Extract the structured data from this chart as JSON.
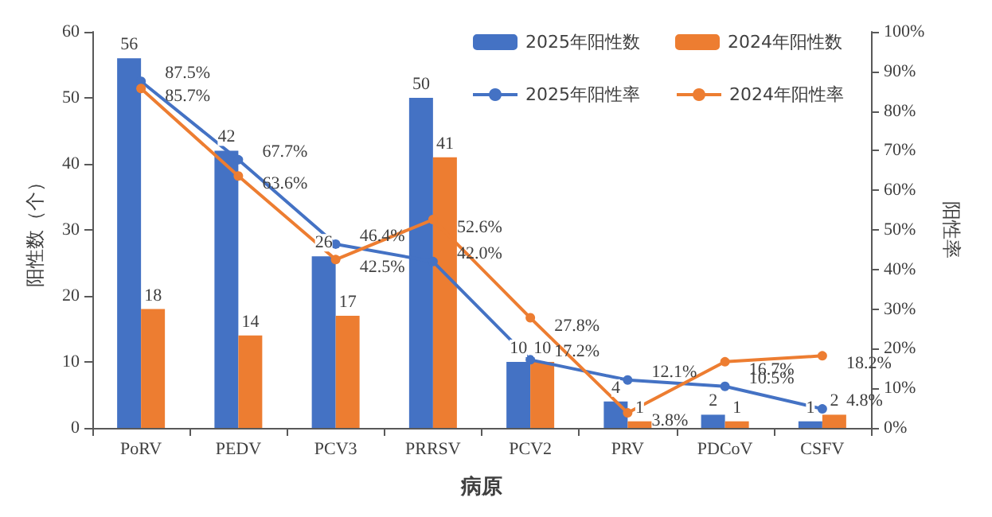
{
  "chart_data": {
    "type": "bar",
    "xlabel": "病原",
    "ylabel": "阳性数（个）",
    "y2label": "阳性率",
    "categories": [
      "PoRV",
      "PEDV",
      "PCV3",
      "PRRSV",
      "PCV2",
      "PRV",
      "PDCoV",
      "CSFV"
    ],
    "series": [
      {
        "name": "2025年阳性数",
        "color": "#4472c4",
        "values": [
          56,
          42,
          26,
          50,
          10,
          4,
          2,
          1
        ],
        "value_labels": [
          "56",
          "42",
          "26",
          "50",
          "10",
          "4",
          "2",
          "1"
        ]
      },
      {
        "name": "2024年阳性数",
        "color": "#ed7d31",
        "values": [
          18,
          14,
          17,
          41,
          10,
          1,
          1,
          2
        ],
        "value_labels": [
          "18",
          "14",
          "17",
          "41",
          "10",
          "1",
          "1",
          "2"
        ]
      },
      {
        "name": "2025年阳性率",
        "type": "line",
        "axis": "y2",
        "color": "#4472c4",
        "values": [
          87.5,
          67.7,
          46.4,
          42.0,
          17.2,
          12.1,
          10.5,
          4.8
        ],
        "value_labels": [
          "87.5%",
          "67.7%",
          "46.4%",
          "42.0%",
          "17.2%",
          "12.1%",
          "10.5%",
          "4.8%"
        ]
      },
      {
        "name": "2024年阳性率",
        "type": "line",
        "axis": "y2",
        "color": "#ed7d31",
        "values": [
          85.7,
          63.6,
          42.5,
          52.6,
          27.8,
          3.8,
          16.7,
          18.2
        ],
        "value_labels": [
          "85.7%",
          "63.6%",
          "42.5%",
          "52.6%",
          "27.8%",
          "3.8%",
          "16.7%",
          "18.2%"
        ]
      }
    ],
    "ylim": [
      0,
      60
    ],
    "yticks": [
      0,
      10,
      20,
      30,
      40,
      50,
      60
    ],
    "y2lim": [
      0,
      100
    ],
    "y2ticks": [
      {
        "value": 0,
        "label": "0%"
      },
      {
        "value": 10,
        "label": "10%"
      },
      {
        "value": 20,
        "label": "20%"
      },
      {
        "value": 30,
        "label": "30%"
      },
      {
        "value": 40,
        "label": "40%"
      },
      {
        "value": 50,
        "label": "50%"
      },
      {
        "value": 60,
        "label": "60%"
      },
      {
        "value": 70,
        "label": "70%"
      },
      {
        "value": 80,
        "label": "80%"
      },
      {
        "value": 90,
        "label": "90%"
      },
      {
        "value": 100,
        "label": "100%"
      }
    ],
    "legend": "top right",
    "grid": false,
    "marker": "circle"
  }
}
